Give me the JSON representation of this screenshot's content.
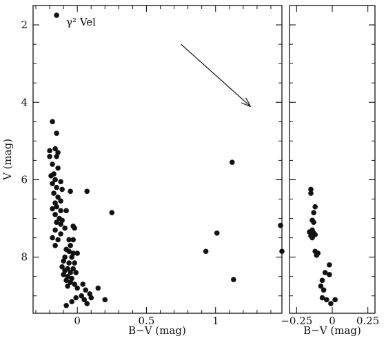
{
  "chart_data": [
    {
      "type": "scatter",
      "xlabel": "B−V (mag)",
      "ylabel": "V (mag)",
      "xlim": [
        -0.32,
        1.48
      ],
      "ylim": [
        9.45,
        1.5
      ],
      "y_inverted": true,
      "x_ticks": [
        0,
        0.5,
        1
      ],
      "x_tick_labels": [
        "0",
        "0.5",
        "1"
      ],
      "y_ticks": [
        2,
        4,
        6,
        8
      ],
      "y_tick_labels": [
        "2",
        "4",
        "6",
        "8"
      ],
      "annotation": {
        "text": "γ² Vel",
        "x": -0.15,
        "y": 1.75
      },
      "reddening_vector": {
        "x1": 0.75,
        "y1": 2.5,
        "x2": 1.25,
        "y2": 4.1
      },
      "points": [
        [
          -0.15,
          1.75
        ],
        [
          -0.18,
          4.5
        ],
        [
          -0.15,
          4.8
        ],
        [
          -0.16,
          5.2
        ],
        [
          -0.2,
          5.25
        ],
        [
          -0.14,
          5.3
        ],
        [
          -0.2,
          5.4
        ],
        [
          -0.15,
          5.4
        ],
        [
          -0.18,
          5.6
        ],
        [
          -0.14,
          5.7
        ],
        [
          -0.17,
          5.85
        ],
        [
          -0.19,
          5.9
        ],
        [
          -0.16,
          6.0
        ],
        [
          -0.12,
          6.05
        ],
        [
          -0.18,
          6.1
        ],
        [
          -0.15,
          6.2
        ],
        [
          -0.11,
          6.25
        ],
        [
          -0.05,
          6.3
        ],
        [
          0.07,
          6.3
        ],
        [
          -0.17,
          6.35
        ],
        [
          -0.14,
          6.45
        ],
        [
          -0.12,
          6.55
        ],
        [
          -0.16,
          6.6
        ],
        [
          -0.15,
          6.7
        ],
        [
          -0.18,
          6.75
        ],
        [
          -0.12,
          6.8
        ],
        [
          -0.08,
          6.8
        ],
        [
          -0.16,
          6.9
        ],
        [
          -0.13,
          7.0
        ],
        [
          -0.11,
          7.05
        ],
        [
          -0.15,
          7.1
        ],
        [
          -0.12,
          7.15
        ],
        [
          -0.09,
          7.25
        ],
        [
          -0.03,
          7.2
        ],
        [
          -0.02,
          7.25
        ],
        [
          -0.16,
          7.3
        ],
        [
          -0.12,
          7.4
        ],
        [
          -0.18,
          7.5
        ],
        [
          -0.14,
          7.55
        ],
        [
          -0.06,
          7.55
        ],
        [
          -0.03,
          7.55
        ],
        [
          -0.16,
          7.7
        ],
        [
          -0.05,
          7.7
        ],
        [
          -0.08,
          7.8
        ],
        [
          -0.06,
          7.85
        ],
        [
          -0.03,
          7.9
        ],
        [
          0.0,
          7.9
        ],
        [
          -0.09,
          8.0
        ],
        [
          -0.04,
          8.0
        ],
        [
          -0.1,
          8.1
        ],
        [
          -0.06,
          8.15
        ],
        [
          -0.02,
          8.15
        ],
        [
          -0.11,
          8.25
        ],
        [
          -0.07,
          8.3
        ],
        [
          -0.03,
          8.3
        ],
        [
          -0.09,
          8.35
        ],
        [
          -0.05,
          8.4
        ],
        [
          -0.01,
          8.4
        ],
        [
          -0.1,
          8.45
        ],
        [
          -0.07,
          8.5
        ],
        [
          -0.04,
          8.55
        ],
        [
          -0.08,
          8.6
        ],
        [
          -0.05,
          8.65
        ],
        [
          -0.02,
          8.7
        ],
        [
          -0.07,
          8.75
        ],
        [
          0.04,
          8.7
        ],
        [
          0.0,
          8.8
        ],
        [
          0.06,
          8.85
        ],
        [
          0.15,
          8.8
        ],
        [
          0.09,
          8.95
        ],
        [
          0.03,
          9.0
        ],
        [
          -0.01,
          9.05
        ],
        [
          0.1,
          9.05
        ],
        [
          0.05,
          9.1
        ],
        [
          0.2,
          9.1
        ],
        [
          -0.04,
          9.15
        ],
        [
          0.07,
          9.2
        ],
        [
          -0.08,
          9.25
        ],
        [
          0.25,
          6.85
        ],
        [
          1.12,
          5.55
        ],
        [
          1.01,
          7.38
        ],
        [
          0.93,
          7.85
        ],
        [
          1.13,
          8.58
        ],
        [
          1.47,
          7.18
        ],
        [
          1.48,
          7.85
        ]
      ]
    },
    {
      "type": "scatter",
      "xlabel": "B−V (mag)",
      "xlim": [
        -0.3,
        0.3
      ],
      "ylim": [
        9.45,
        1.5
      ],
      "x_ticks": [
        -0.25,
        0,
        0.25
      ],
      "x_tick_labels": [
        "−0.25",
        "0",
        "0.25"
      ],
      "points": [
        [
          -0.15,
          6.25
        ],
        [
          -0.15,
          6.35
        ],
        [
          -0.12,
          6.7
        ],
        [
          -0.13,
          6.85
        ],
        [
          -0.14,
          7.05
        ],
        [
          -0.13,
          7.1
        ],
        [
          -0.14,
          7.3
        ],
        [
          -0.16,
          7.35
        ],
        [
          -0.13,
          7.38
        ],
        [
          -0.12,
          7.42
        ],
        [
          -0.15,
          7.45
        ],
        [
          -0.14,
          7.5
        ],
        [
          -0.12,
          7.85
        ],
        [
          -0.1,
          7.9
        ],
        [
          -0.11,
          7.95
        ],
        [
          -0.02,
          8.2
        ],
        [
          -0.05,
          8.4
        ],
        [
          -0.02,
          8.45
        ],
        [
          -0.07,
          8.6
        ],
        [
          -0.08,
          8.75
        ],
        [
          -0.06,
          8.85
        ],
        [
          -0.07,
          9.05
        ],
        [
          -0.04,
          9.1
        ],
        [
          0.02,
          9.1
        ],
        [
          -0.01,
          9.2
        ]
      ]
    }
  ]
}
